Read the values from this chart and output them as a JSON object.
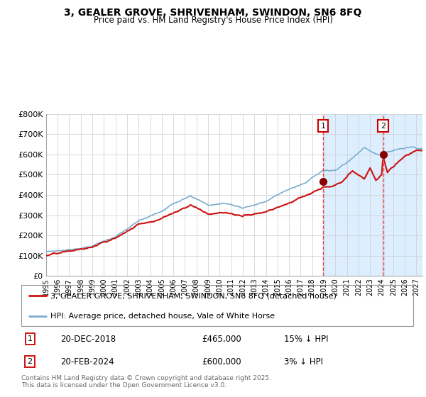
{
  "title": "3, GEALER GROVE, SHRIVENHAM, SWINDON, SN6 8FQ",
  "subtitle": "Price paid vs. HM Land Registry's House Price Index (HPI)",
  "legend1": "3, GEALER GROVE, SHRIVENHAM, SWINDON, SN6 8FQ (detached house)",
  "legend2": "HPI: Average price, detached house, Vale of White Horse",
  "marker1_date": "20-DEC-2018",
  "marker1_price": "£465,000",
  "marker1_info": "15% ↓ HPI",
  "marker2_date": "20-FEB-2024",
  "marker2_price": "£600,000",
  "marker2_info": "3% ↓ HPI",
  "footer": "Contains HM Land Registry data © Crown copyright and database right 2025.\nThis data is licensed under the Open Government Licence v3.0.",
  "hpi_color": "#7aadcc",
  "property_color": "#cc1111",
  "marker_color": "#880000",
  "vline_color": "#ee4444",
  "shade_color": "#ddeeff",
  "grid_color": "#cccccc",
  "bg_color": "#ffffff",
  "ylim": [
    0,
    800000
  ],
  "yticks": [
    0,
    100000,
    200000,
    300000,
    400000,
    500000,
    600000,
    700000,
    800000
  ],
  "ytick_labels": [
    "£0",
    "£100K",
    "£200K",
    "£300K",
    "£400K",
    "£500K",
    "£600K",
    "£700K",
    "£800K"
  ],
  "xlim_start": 1995.0,
  "xlim_end": 2027.5,
  "marker1_x": 2018.96,
  "marker1_y": 465000,
  "marker2_x": 2024.12,
  "marker2_y": 600000
}
